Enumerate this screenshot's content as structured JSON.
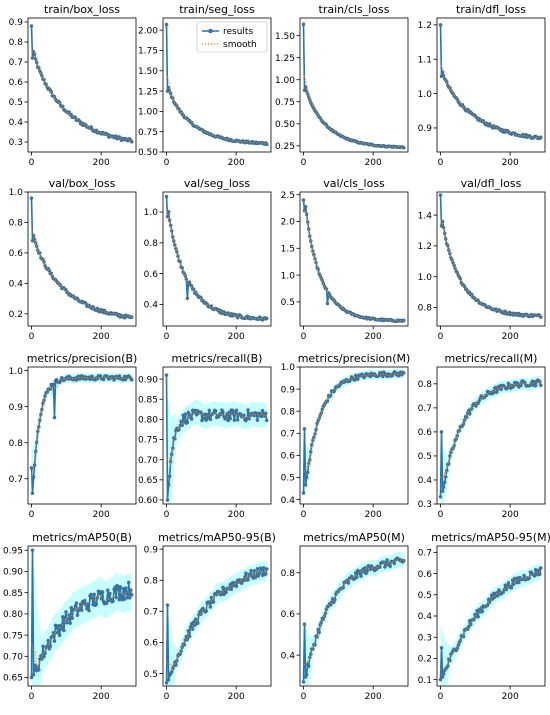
{
  "legend": {
    "results_label": "results",
    "smooth_label": "smooth",
    "placement": "upper-right of train/seg_loss"
  },
  "colors": {
    "results": "#1f77b4",
    "smooth": "#ff7f0e",
    "marker_fill": "#4c6f8f",
    "band": "#00ffff",
    "axis": "#000000"
  },
  "chart_data": [
    {
      "type": "line",
      "title": "train/box_loss",
      "xlim": [
        -10,
        300
      ],
      "ylim": [
        0.25,
        0.92
      ],
      "xticks": [
        0,
        200
      ],
      "yticks": [
        0.3,
        0.4,
        0.5,
        0.6,
        0.7,
        0.8,
        0.9
      ],
      "ytick_labels": [
        "0.3",
        "0.4",
        "0.5",
        "0.6",
        "0.7",
        "0.8",
        "0.9"
      ],
      "curve": {
        "kind": "decay",
        "start": 0.88,
        "p1": 0.72,
        "end": 0.275,
        "rate": 0.028
      },
      "noise": 0.008,
      "band": false
    },
    {
      "type": "line",
      "title": "train/seg_loss",
      "xlim": [
        -10,
        300
      ],
      "ylim": [
        0.5,
        2.15
      ],
      "xticks": [
        0,
        200
      ],
      "yticks": [
        0.5,
        0.75,
        1.0,
        1.25,
        1.5,
        1.75,
        2.0
      ],
      "ytick_labels": [
        "0.50",
        "0.75",
        "1.00",
        "1.25",
        "1.50",
        "1.75",
        "2.00"
      ],
      "curve": {
        "kind": "decay",
        "start": 2.07,
        "p1": 1.25,
        "end": 0.59,
        "rate": 0.04
      },
      "noise": 0.012,
      "band": false,
      "legend": true
    },
    {
      "type": "line",
      "title": "train/cls_loss",
      "xlim": [
        -10,
        300
      ],
      "ylim": [
        0.18,
        1.7
      ],
      "xticks": [
        0,
        200
      ],
      "yticks": [
        0.25,
        0.5,
        0.75,
        1.0,
        1.25,
        1.5
      ],
      "ytick_labels": [
        "0.25",
        "0.50",
        "0.75",
        "1.00",
        "1.25",
        "1.50"
      ],
      "curve": {
        "kind": "decay",
        "start": 1.63,
        "p1": 0.88,
        "end": 0.225,
        "rate": 0.045
      },
      "noise": 0.006,
      "band": false
    },
    {
      "type": "line",
      "title": "train/dfl_loss",
      "xlim": [
        -10,
        300
      ],
      "ylim": [
        0.83,
        1.22
      ],
      "xticks": [
        0,
        200
      ],
      "yticks": [
        0.9,
        1.0,
        1.1,
        1.2
      ],
      "ytick_labels": [
        "0.9",
        "1.0",
        "1.1",
        "1.2"
      ],
      "curve": {
        "kind": "decay",
        "start": 1.2,
        "p1": 1.05,
        "end": 0.86,
        "rate": 0.03
      },
      "noise": 0.004,
      "band": false
    },
    {
      "type": "line",
      "title": "val/box_loss",
      "xlim": [
        -10,
        300
      ],
      "ylim": [
        0.12,
        1.0
      ],
      "xticks": [
        0,
        200
      ],
      "yticks": [
        0.2,
        0.4,
        0.6,
        0.8,
        1.0
      ],
      "ytick_labels": [
        "0.2",
        "0.4",
        "0.6",
        "0.8",
        "1.0"
      ],
      "curve": {
        "kind": "decay",
        "start": 0.96,
        "p1": 0.68,
        "end": 0.145,
        "rate": 0.03
      },
      "noise": 0.01,
      "band": false
    },
    {
      "type": "line",
      "title": "val/seg_loss",
      "xlim": [
        -10,
        300
      ],
      "ylim": [
        0.26,
        1.13
      ],
      "xticks": [
        0,
        200
      ],
      "yticks": [
        0.4,
        0.6,
        0.8,
        1.0
      ],
      "ytick_labels": [
        "0.4",
        "0.6",
        "0.8",
        "1.0"
      ],
      "curve": {
        "kind": "decay",
        "start": 1.1,
        "p1": 0.97,
        "end": 0.3,
        "rate": 0.05
      },
      "noise": 0.01,
      "band": false,
      "spike": {
        "x": 60,
        "y": 0.44
      }
    },
    {
      "type": "line",
      "title": "val/cls_loss",
      "xlim": [
        -10,
        300
      ],
      "ylim": [
        0.05,
        2.55
      ],
      "xticks": [
        0,
        200
      ],
      "yticks": [
        0.5,
        1.0,
        1.5,
        2.0,
        2.5
      ],
      "ytick_labels": [
        "0.5",
        "1.0",
        "1.5",
        "2.0",
        "2.5"
      ],
      "curve": {
        "kind": "decay",
        "start": 2.4,
        "p1": 2.2,
        "end": 0.14,
        "rate": 0.06
      },
      "noise": 0.015,
      "band": false,
      "spike": {
        "x": 70,
        "y": 0.47
      }
    },
    {
      "type": "line",
      "title": "val/dfl_loss",
      "xlim": [
        -10,
        300
      ],
      "ylim": [
        0.68,
        1.55
      ],
      "xticks": [
        0,
        200
      ],
      "yticks": [
        0.8,
        1.0,
        1.2,
        1.4
      ],
      "ytick_labels": [
        "0.8",
        "1.0",
        "1.2",
        "1.4"
      ],
      "curve": {
        "kind": "decay",
        "start": 1.53,
        "p1": 1.33,
        "end": 0.74,
        "rate": 0.05
      },
      "noise": 0.008,
      "band": false
    },
    {
      "type": "line",
      "title": "metrics/precision(B)",
      "xlim": [
        -10,
        300
      ],
      "ylim": [
        0.63,
        1.01
      ],
      "xticks": [
        0,
        200
      ],
      "yticks": [
        0.7,
        0.8,
        0.9,
        1.0
      ],
      "ytick_labels": [
        "0.7",
        "0.8",
        "0.9",
        "1.0"
      ],
      "curve": {
        "kind": "rise",
        "start": 0.73,
        "p1": 0.66,
        "end": 0.98,
        "rate": 0.15
      },
      "noise": 0.006,
      "band": true,
      "spike": {
        "x": 65,
        "y": 0.87
      }
    },
    {
      "type": "line",
      "title": "metrics/recall(B)",
      "xlim": [
        -10,
        300
      ],
      "ylim": [
        0.59,
        0.93
      ],
      "xticks": [
        0,
        200
      ],
      "yticks": [
        0.6,
        0.65,
        0.7,
        0.75,
        0.8,
        0.85,
        0.9
      ],
      "ytick_labels": [
        "0.60",
        "0.65",
        "0.70",
        "0.75",
        "0.80",
        "0.85",
        "0.90"
      ],
      "curve": {
        "kind": "rise",
        "start": 0.91,
        "p1": 0.6,
        "end": 0.81,
        "rate": 0.2
      },
      "noise": 0.014,
      "band": true
    },
    {
      "type": "line",
      "title": "metrics/precision(M)",
      "xlim": [
        -10,
        300
      ],
      "ylim": [
        0.38,
        1.0
      ],
      "xticks": [
        0,
        200
      ],
      "yticks": [
        0.4,
        0.5,
        0.6,
        0.7,
        0.8,
        0.9,
        1.0
      ],
      "ytick_labels": [
        "0.4",
        "0.5",
        "0.6",
        "0.7",
        "0.8",
        "0.9",
        "1.0"
      ],
      "curve": {
        "kind": "rise",
        "start": 0.43,
        "p1": 0.72,
        "end": 0.97,
        "rate": 0.07
      },
      "noise": 0.01,
      "band": true
    },
    {
      "type": "line",
      "title": "metrics/recall(M)",
      "xlim": [
        -10,
        300
      ],
      "ylim": [
        0.3,
        0.87
      ],
      "xticks": [
        0,
        200
      ],
      "yticks": [
        0.3,
        0.4,
        0.5,
        0.6,
        0.7,
        0.8
      ],
      "ytick_labels": [
        "0.3",
        "0.4",
        "0.5",
        "0.6",
        "0.7",
        "0.8"
      ],
      "curve": {
        "kind": "rise",
        "start": 0.33,
        "p1": 0.6,
        "end": 0.81,
        "rate": 0.05
      },
      "noise": 0.012,
      "band": true
    },
    {
      "type": "line",
      "title": "metrics/mAP50(B)",
      "xlim": [
        -10,
        300
      ],
      "ylim": [
        0.63,
        0.96
      ],
      "xticks": [
        0,
        200
      ],
      "yticks": [
        0.65,
        0.7,
        0.75,
        0.8,
        0.85,
        0.9,
        0.95
      ],
      "ytick_labels": [
        "0.65",
        "0.70",
        "0.75",
        "0.80",
        "0.85",
        "0.90",
        "0.95"
      ],
      "curve": {
        "kind": "rise",
        "start": 0.65,
        "p1": 0.95,
        "end": 0.87,
        "rate": 0.03
      },
      "noise": 0.02,
      "band": true
    },
    {
      "type": "line",
      "title": "metrics/mAP50-95(B)",
      "xlim": [
        -10,
        300
      ],
      "ylim": [
        0.46,
        0.91
      ],
      "xticks": [
        0,
        200
      ],
      "yticks": [
        0.5,
        0.6,
        0.7,
        0.8,
        0.9
      ],
      "ytick_labels": [
        "0.5",
        "0.6",
        "0.7",
        "0.8",
        "0.9"
      ],
      "curve": {
        "kind": "rise",
        "start": 0.47,
        "p1": 0.72,
        "end": 0.87,
        "rate": 0.025
      },
      "noise": 0.015,
      "band": true
    },
    {
      "type": "line",
      "title": "metrics/mAP50(M)",
      "xlim": [
        -10,
        300
      ],
      "ylim": [
        0.25,
        0.93
      ],
      "xticks": [
        0,
        200
      ],
      "yticks": [
        0.4,
        0.6,
        0.8
      ],
      "ytick_labels": [
        "0.4",
        "0.6",
        "0.8"
      ],
      "curve": {
        "kind": "rise",
        "start": 0.27,
        "p1": 0.55,
        "end": 0.87,
        "rate": 0.04
      },
      "noise": 0.018,
      "band": true
    },
    {
      "type": "line",
      "title": "metrics/mAP50-95(M)",
      "xlim": [
        -10,
        300
      ],
      "ylim": [
        0.07,
        0.73
      ],
      "xticks": [
        0,
        200
      ],
      "yticks": [
        0.1,
        0.2,
        0.3,
        0.4,
        0.5,
        0.6,
        0.7
      ],
      "ytick_labels": [
        "0.1",
        "0.2",
        "0.3",
        "0.4",
        "0.5",
        "0.6",
        "0.7"
      ],
      "curve": {
        "kind": "rise",
        "start": 0.1,
        "p1": 0.25,
        "end": 0.685,
        "rate": 0.022
      },
      "noise": 0.018,
      "band": true
    }
  ]
}
